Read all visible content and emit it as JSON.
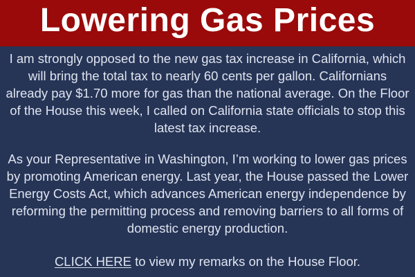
{
  "header": {
    "title": "Lowering Gas Prices",
    "background_color": "#9A0A0A",
    "text_color": "#FFFFFF"
  },
  "body": {
    "background_color": "#263456",
    "text_color": "#DFE4EF",
    "paragraph1_lines": [
      "I am strongly opposed to the new gas tax increase in California, which",
      "will bring the total tax to nearly 60 cents per gallon. Californians",
      "already pay $1.70 more for gas than the national average. On the Floor",
      "of the House this week, I called on California state officials to stop this",
      "latest tax increase."
    ],
    "paragraph2_lines": [
      "As your Representative in Washington, I’m working to lower gas prices",
      "by promoting American energy. Last year, the House passed the Lower",
      "Energy Costs Act, which advances American energy independence by",
      "reforming the permitting process and removing barriers to all forms of",
      "domestic energy production."
    ]
  },
  "cta": {
    "link_text": "CLICK HERE",
    "rest_text": " to view my remarks on the House Floor."
  }
}
